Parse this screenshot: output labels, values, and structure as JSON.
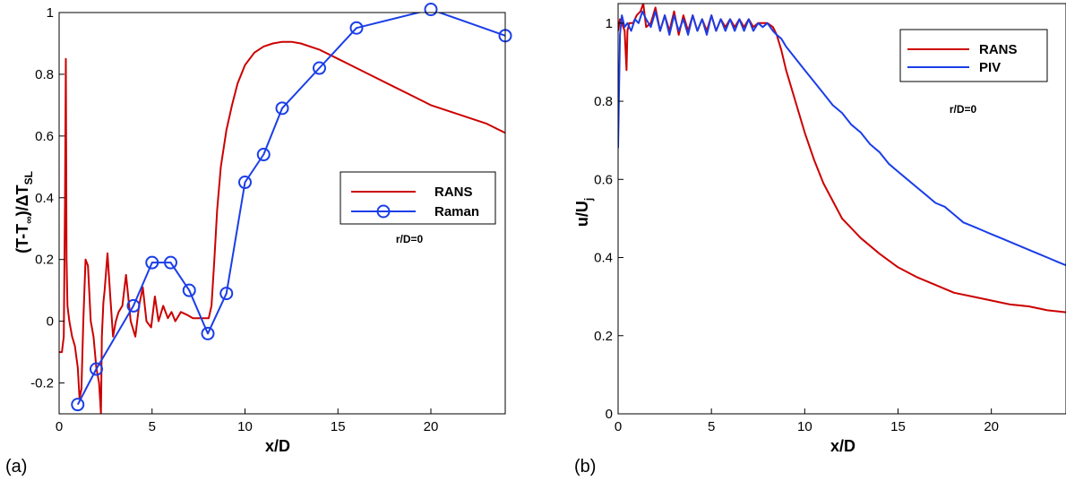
{
  "chart_data": [
    {
      "type": "line",
      "panel_label": "(a)",
      "xlabel": "x/D",
      "ylabel_parts": [
        "(T-T",
        "∞",
        ")/ΔT",
        "SL"
      ],
      "xlim": [
        0,
        24
      ],
      "ylim": [
        -0.3,
        1.0
      ],
      "xticks": [
        0,
        5,
        10,
        15,
        20
      ],
      "xtick_labels": [
        "0",
        "5",
        "10",
        "15",
        "20"
      ],
      "yticks": [
        -0.2,
        0,
        0.2,
        0.4,
        0.6,
        0.8,
        1
      ],
      "ytick_labels": [
        "-0.2",
        "0",
        "0.2",
        "0.4",
        "0.6",
        "0.8",
        "1"
      ],
      "annotation": "r/D=0",
      "legend_position": "center-right",
      "series": [
        {
          "name": "RANS",
          "color": "#cc0000",
          "marker": "none",
          "x": [
            0,
            0.15,
            0.25,
            0.32,
            0.36,
            0.4,
            0.45,
            0.55,
            0.7,
            0.85,
            1.0,
            1.1,
            1.2,
            1.3,
            1.42,
            1.55,
            1.7,
            1.85,
            2.0,
            2.15,
            2.25,
            2.3,
            2.38,
            2.45,
            2.6,
            2.75,
            2.9,
            3.05,
            3.2,
            3.4,
            3.6,
            3.85,
            4.1,
            4.3,
            4.5,
            4.7,
            4.95,
            5.15,
            5.35,
            5.6,
            5.85,
            6.05,
            6.25,
            6.55,
            6.9,
            7.2,
            7.5,
            7.8,
            8.05,
            8.2,
            8.35,
            8.5,
            8.7,
            9.0,
            9.3,
            9.6,
            10.0,
            10.5,
            11.0,
            11.5,
            12.0,
            12.5,
            13.0,
            14.0,
            15.0,
            16.0,
            17.0,
            18.0,
            19.0,
            20.0,
            21.0,
            22.0,
            23.0,
            24.0
          ],
          "values": [
            -0.1,
            -0.1,
            -0.05,
            0.4,
            0.85,
            0.2,
            0.05,
            0.0,
            -0.05,
            -0.08,
            -0.15,
            -0.25,
            -0.22,
            0.0,
            0.2,
            0.18,
            0.0,
            -0.05,
            -0.15,
            -0.2,
            -0.3,
            -0.05,
            0.06,
            0.1,
            0.22,
            0.08,
            -0.05,
            0.0,
            0.03,
            0.05,
            0.15,
            0.0,
            -0.05,
            0.05,
            0.11,
            0.0,
            -0.02,
            0.08,
            0.0,
            0.05,
            0.01,
            0.03,
            0.0,
            0.03,
            0.02,
            0.01,
            0.01,
            0.01,
            0.01,
            0.05,
            0.2,
            0.36,
            0.5,
            0.62,
            0.7,
            0.77,
            0.83,
            0.87,
            0.89,
            0.9,
            0.905,
            0.905,
            0.9,
            0.88,
            0.85,
            0.82,
            0.79,
            0.76,
            0.73,
            0.7,
            0.68,
            0.66,
            0.64,
            0.61
          ]
        },
        {
          "name": "Raman",
          "color": "#1a3ee8",
          "marker": "circle",
          "x": [
            1,
            2,
            4,
            5,
            6,
            7,
            8,
            9,
            10,
            11,
            12,
            14,
            16,
            20,
            24
          ],
          "values": [
            -0.27,
            -0.155,
            0.05,
            0.19,
            0.19,
            0.1,
            -0.04,
            0.09,
            0.45,
            0.54,
            0.69,
            0.82,
            0.95,
            1.01,
            0.925
          ]
        }
      ]
    },
    {
      "type": "line",
      "panel_label": "(b)",
      "xlabel": "x/D",
      "ylabel_parts": [
        "u/U",
        "j"
      ],
      "xlim": [
        0,
        24
      ],
      "ylim": [
        0,
        1.05
      ],
      "xticks": [
        0,
        5,
        10,
        15,
        20
      ],
      "xtick_labels": [
        "0",
        "5",
        "10",
        "15",
        "20"
      ],
      "yticks": [
        0,
        0.2,
        0.4,
        0.6,
        0.8,
        1
      ],
      "ytick_labels": [
        "0",
        "0.2",
        "0.4",
        "0.6",
        "0.8",
        "1"
      ],
      "annotation": "r/D=0",
      "legend_position": "top-right",
      "series": [
        {
          "name": "RANS",
          "color": "#cc0000",
          "marker": "none",
          "x": [
            0,
            0.1,
            0.2,
            0.35,
            0.45,
            0.5,
            0.6,
            0.8,
            1.0,
            1.2,
            1.35,
            1.5,
            1.75,
            2.0,
            2.25,
            2.5,
            2.75,
            3.0,
            3.25,
            3.5,
            3.75,
            4.0,
            4.25,
            4.5,
            4.75,
            5.0,
            5.25,
            5.5,
            5.75,
            6.0,
            6.25,
            6.5,
            6.75,
            7.0,
            7.25,
            7.5,
            7.75,
            8.0,
            8.3,
            8.5,
            8.75,
            9.0,
            9.5,
            10.0,
            10.5,
            11.0,
            12.0,
            13.0,
            14.0,
            15.0,
            16.0,
            17.0,
            18.0,
            19.0,
            20.0,
            21.0,
            22.0,
            23.0,
            24.0
          ],
          "values": [
            0.98,
            1.01,
            1.0,
            0.98,
            0.88,
            0.98,
            1.0,
            1.0,
            1.02,
            1.03,
            1.05,
            0.99,
            1.0,
            1.04,
            0.98,
            1.02,
            0.98,
            1.03,
            0.97,
            1.02,
            0.98,
            1.02,
            0.98,
            1.01,
            0.98,
            1.02,
            0.98,
            1.01,
            0.99,
            1.01,
            0.99,
            1.01,
            0.99,
            1.01,
            0.99,
            1.0,
            1.0,
            1.0,
            0.99,
            0.97,
            0.93,
            0.88,
            0.8,
            0.72,
            0.65,
            0.59,
            0.5,
            0.45,
            0.41,
            0.375,
            0.35,
            0.33,
            0.31,
            0.3,
            0.29,
            0.28,
            0.275,
            0.265,
            0.26
          ]
        },
        {
          "name": "PIV",
          "color": "#1a3ee8",
          "marker": "none",
          "x": [
            0,
            0.1,
            0.2,
            0.35,
            0.5,
            0.7,
            0.9,
            1.1,
            1.3,
            1.5,
            1.75,
            2.0,
            2.25,
            2.5,
            2.75,
            3.0,
            3.25,
            3.5,
            3.75,
            4.0,
            4.25,
            4.5,
            4.75,
            5.0,
            5.25,
            5.5,
            5.75,
            6.0,
            6.25,
            6.5,
            6.75,
            7.0,
            7.25,
            7.5,
            7.75,
            8.0,
            8.3,
            8.5,
            8.75,
            9.0,
            9.5,
            10.0,
            10.5,
            11.0,
            11.5,
            12.0,
            12.5,
            13.0,
            13.5,
            14.0,
            14.5,
            15.0,
            15.5,
            16.0,
            16.5,
            17.0,
            17.5,
            18.0,
            18.5,
            19.0,
            19.5,
            20.0,
            20.5,
            21.0,
            21.5,
            22.0,
            22.5,
            23.0,
            23.5,
            24.0
          ],
          "values": [
            0.68,
            0.97,
            1.02,
            0.99,
            1.0,
            0.98,
            1.01,
            1.0,
            1.03,
            1.01,
            0.99,
            1.03,
            0.98,
            1.02,
            0.97,
            1.02,
            0.98,
            1.01,
            0.97,
            1.02,
            0.98,
            1.01,
            0.97,
            1.02,
            0.98,
            1.01,
            0.98,
            1.01,
            0.98,
            1.01,
            0.98,
            1.01,
            0.98,
            1.0,
            0.99,
            1.0,
            0.98,
            0.97,
            0.96,
            0.94,
            0.91,
            0.88,
            0.85,
            0.82,
            0.79,
            0.77,
            0.74,
            0.72,
            0.69,
            0.67,
            0.64,
            0.62,
            0.6,
            0.58,
            0.56,
            0.54,
            0.53,
            0.51,
            0.49,
            0.48,
            0.47,
            0.46,
            0.45,
            0.44,
            0.43,
            0.42,
            0.41,
            0.4,
            0.39,
            0.38
          ]
        }
      ]
    }
  ]
}
